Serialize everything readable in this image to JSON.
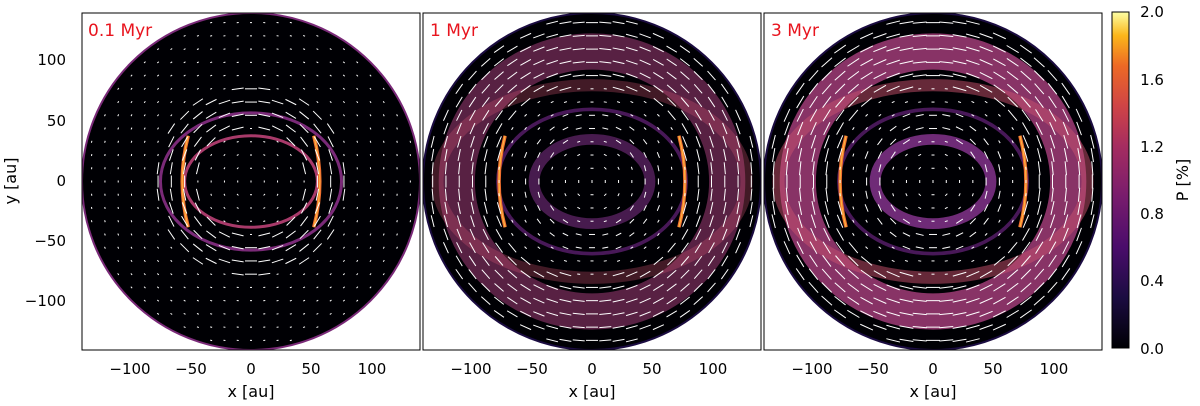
{
  "chart_data": {
    "type": "heatmap",
    "panels": [
      {
        "label": "0.1 Myr",
        "xlabel": "x [au]",
        "ylabel": "y [au]"
      },
      {
        "label": "1 Myr",
        "xlabel": "x [au]",
        "ylabel": ""
      },
      {
        "label": "3 Myr",
        "xlabel": "x [au]",
        "ylabel": ""
      }
    ],
    "xlim": [
      -140,
      140
    ],
    "ylim": [
      -140,
      140
    ],
    "x_ticks": [
      "−100",
      "−50",
      "0",
      "50",
      "100"
    ],
    "x_tick_values": [
      -100,
      -50,
      0,
      50,
      100
    ],
    "y_ticks": [
      "100",
      "50",
      "0",
      "−50",
      "−100"
    ],
    "y_tick_values": [
      100,
      50,
      0,
      -50,
      -100
    ],
    "disk_radius": 140,
    "colorbar": {
      "label": "P [%]",
      "min": 0.0,
      "max": 2.0,
      "ticks": [
        "0.0",
        "0.4",
        "0.8",
        "1.2",
        "1.6",
        "2.0"
      ],
      "tick_values": [
        0.0,
        0.4,
        0.8,
        1.2,
        1.6,
        2.0
      ],
      "colormap": "inferno"
    },
    "colors": {
      "panel_label": "#e8141e",
      "vectors": "#ffffff",
      "background": "#000000"
    }
  }
}
